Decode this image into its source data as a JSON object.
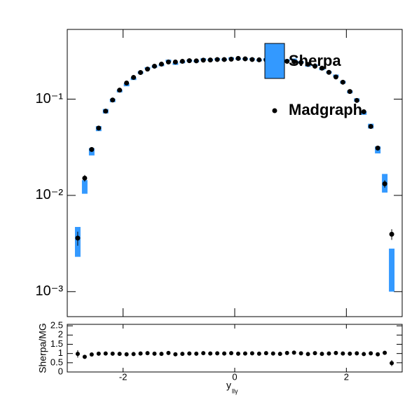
{
  "chart_data": [
    {
      "type": "errorbox",
      "log_y": true,
      "legend": "upper right",
      "x": [
        -2.8125,
        -2.6875,
        -2.5625,
        -2.4375,
        -2.3125,
        -2.1875,
        -2.0625,
        -1.9375,
        -1.8125,
        -1.6875,
        -1.5625,
        -1.4375,
        -1.3125,
        -1.1875,
        -1.0625,
        -0.9375,
        -0.8125,
        -0.6875,
        -0.5625,
        -0.4375,
        -0.3125,
        -0.1875,
        -0.0625,
        0.0625,
        0.1875,
        0.3125,
        0.4375,
        0.5625,
        0.6875,
        0.8125,
        0.9375,
        1.0625,
        1.1875,
        1.3125,
        1.4375,
        1.5625,
        1.6875,
        1.8125,
        1.9375,
        2.0625,
        2.1875,
        2.3125,
        2.4375,
        2.5625,
        2.6875,
        2.8125
      ],
      "xlim": [
        -3,
        3
      ],
      "xticks": [
        -2,
        0,
        2
      ],
      "ylim": [
        0.00055,
        0.53
      ],
      "yticks": [
        {
          "value": 0.001,
          "label": "10⁻³"
        },
        {
          "value": 0.01,
          "label": "10⁻²"
        },
        {
          "value": 0.1,
          "label": "10⁻¹"
        }
      ],
      "series": [
        {
          "name": "Sherpa",
          "color": "#3399ff",
          "style": "box",
          "values": [
            0.0035,
            0.0124,
            0.0285,
            0.0495,
            0.075,
            0.097,
            0.1215,
            0.141,
            0.163,
            0.189,
            0.209,
            0.218,
            0.226,
            0.25,
            0.233,
            0.242,
            0.251,
            0.2475,
            0.259,
            0.255,
            0.2606,
            0.258,
            0.2652,
            0.262,
            0.262,
            0.261,
            0.253,
            0.26,
            0.254,
            0.245,
            0.254,
            0.257,
            0.242,
            0.223,
            0.224,
            0.206,
            0.19,
            0.175,
            0.15,
            0.119,
            0.098,
            0.0718,
            0.0525,
            0.0298,
            0.0137,
            0.0019
          ],
          "errors": [
            0.0012,
            0.002,
            0.0025,
            0.003,
            0.004,
            0.004,
            0.004,
            0.005,
            0.005,
            0.006,
            0.006,
            0.006,
            0.006,
            0.007,
            0.006,
            0.006,
            0.006,
            0.006,
            0.007,
            0.006,
            0.006,
            0.006,
            0.007,
            0.006,
            0.006,
            0.006,
            0.006,
            0.007,
            0.006,
            0.006,
            0.006,
            0.007,
            0.006,
            0.006,
            0.006,
            0.006,
            0.005,
            0.005,
            0.005,
            0.004,
            0.004,
            0.003,
            0.003,
            0.0025,
            0.003,
            0.0009
          ]
        },
        {
          "name": "Madgraph",
          "color": "#000000",
          "style": "points",
          "values": [
            0.0036,
            0.0151,
            0.03,
            0.05,
            0.075,
            0.098,
            0.124,
            0.147,
            0.168,
            0.189,
            0.205,
            0.22,
            0.231,
            0.243,
            0.243,
            0.247,
            0.251,
            0.25,
            0.254,
            0.255,
            0.258,
            0.258,
            0.26,
            0.265,
            0.262,
            0.258,
            0.256,
            0.255,
            0.254,
            0.25,
            0.247,
            0.245,
            0.24,
            0.23,
            0.22,
            0.21,
            0.19,
            0.17,
            0.15,
            0.12,
            0.097,
            0.074,
            0.052,
            0.031,
            0.0132,
            0.00395
          ],
          "errors": [
            0.0006,
            0.0012,
            0.0015,
            0.002,
            0.002,
            0.002,
            0.002,
            0.002,
            0.002,
            0.002,
            0.002,
            0.002,
            0.002,
            0.002,
            0.002,
            0.002,
            0.002,
            0.002,
            0.002,
            0.002,
            0.002,
            0.002,
            0.002,
            0.002,
            0.002,
            0.002,
            0.002,
            0.002,
            0.002,
            0.002,
            0.002,
            0.002,
            0.002,
            0.002,
            0.002,
            0.002,
            0.002,
            0.002,
            0.002,
            0.002,
            0.002,
            0.002,
            0.002,
            0.0015,
            0.0012,
            0.0005
          ]
        }
      ]
    },
    {
      "type": "scatter",
      "xlabel": "y",
      "xlabel_sub": "llγ",
      "ylabel": "Sherpa/MG",
      "x": [
        -2.8125,
        -2.6875,
        -2.5625,
        -2.4375,
        -2.3125,
        -2.1875,
        -2.0625,
        -1.9375,
        -1.8125,
        -1.6875,
        -1.5625,
        -1.4375,
        -1.3125,
        -1.1875,
        -1.0625,
        -0.9375,
        -0.8125,
        -0.6875,
        -0.5625,
        -0.4375,
        -0.3125,
        -0.1875,
        -0.0625,
        0.0625,
        0.1875,
        0.3125,
        0.4375,
        0.5625,
        0.6875,
        0.8125,
        0.9375,
        1.0625,
        1.1875,
        1.3125,
        1.4375,
        1.5625,
        1.6875,
        1.8125,
        1.9375,
        2.0625,
        2.1875,
        2.3125,
        2.4375,
        2.5625,
        2.6875,
        2.8125
      ],
      "xlim": [
        -3,
        3
      ],
      "xticks": [
        -2,
        0,
        2
      ],
      "ylim": [
        0,
        2.58
      ],
      "yticks": [
        0,
        0.5,
        1,
        1.5,
        2,
        2.5
      ],
      "color": "#000000",
      "values": [
        0.98,
        0.82,
        0.95,
        0.99,
        1.0,
        0.99,
        0.98,
        0.96,
        0.97,
        1.0,
        1.02,
        0.99,
        0.98,
        1.03,
        0.96,
        0.98,
        1.0,
        0.99,
        1.02,
        1.0,
        1.01,
        1.0,
        1.02,
        0.99,
        1.0,
        1.01,
        0.99,
        1.02,
        1.0,
        0.98,
        1.03,
        1.05,
        1.01,
        0.97,
        1.02,
        0.98,
        1.0,
        1.03,
        1.0,
        0.99,
        1.01,
        0.97,
        1.01,
        0.96,
        1.04,
        0.48
      ],
      "errors": [
        0.2,
        0.06,
        0.05,
        0.04,
        0.04,
        0.04,
        0.04,
        0.04,
        0.04,
        0.04,
        0.04,
        0.04,
        0.04,
        0.04,
        0.04,
        0.04,
        0.04,
        0.04,
        0.04,
        0.04,
        0.04,
        0.04,
        0.04,
        0.04,
        0.04,
        0.04,
        0.04,
        0.04,
        0.04,
        0.04,
        0.04,
        0.04,
        0.04,
        0.04,
        0.04,
        0.04,
        0.04,
        0.04,
        0.04,
        0.04,
        0.04,
        0.04,
        0.04,
        0.05,
        0.06,
        0.16
      ]
    }
  ]
}
